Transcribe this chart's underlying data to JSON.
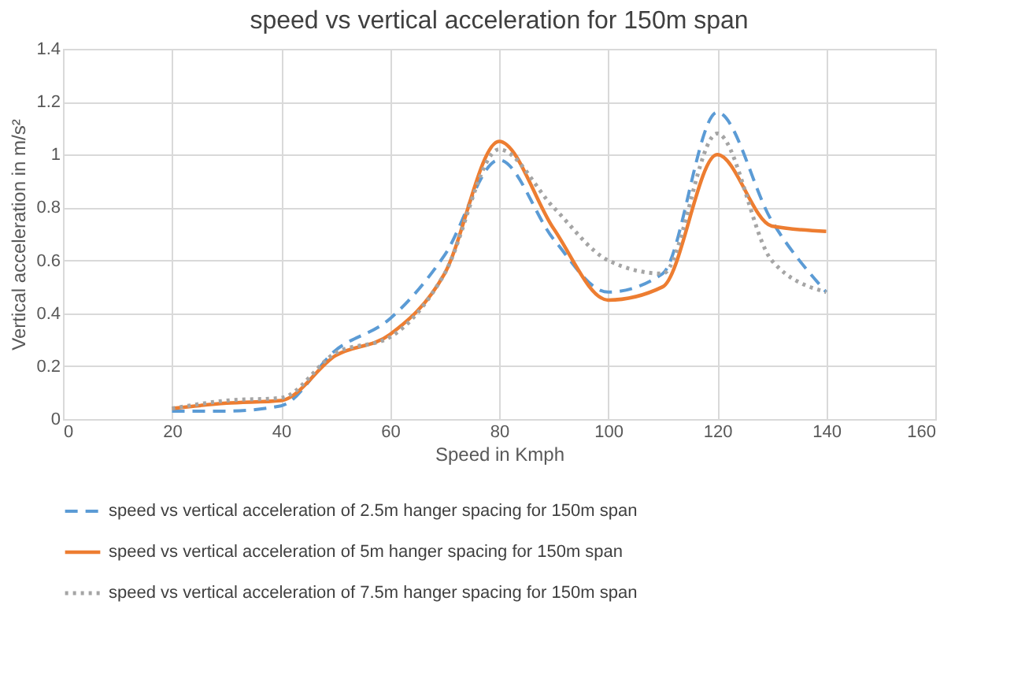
{
  "chart_data": {
    "type": "line",
    "title": "speed vs vertical acceleration for 150m span",
    "xlabel": "Speed in Kmph",
    "ylabel": "Vertical acceleration in m/s²",
    "x": [
      20,
      30,
      40,
      50,
      60,
      70,
      80,
      90,
      100,
      110,
      120,
      130,
      140
    ],
    "series": [
      {
        "name": "speed vs vertical acceleration of 2.5m hanger spacing for 150m span",
        "color": "#5b9bd5",
        "line_style": "dashed",
        "values": [
          0.03,
          0.03,
          0.05,
          0.26,
          0.38,
          0.62,
          0.98,
          0.68,
          0.48,
          0.55,
          1.16,
          0.75,
          0.48
        ]
      },
      {
        "name": "speed vs vertical acceleration of 5m hanger spacing for 150m span",
        "color": "#ed7d31",
        "line_style": "solid",
        "values": [
          0.04,
          0.06,
          0.07,
          0.24,
          0.32,
          0.55,
          1.05,
          0.72,
          0.45,
          0.5,
          1.0,
          0.73,
          0.71
        ]
      },
      {
        "name": "speed vs vertical acceleration of 7.5m hanger spacing for 150m span",
        "color": "#a5a5a5",
        "line_style": "dotted",
        "values": [
          0.04,
          0.07,
          0.08,
          0.25,
          0.31,
          0.55,
          1.02,
          0.8,
          0.6,
          0.55,
          1.08,
          0.6,
          0.48
        ]
      }
    ],
    "xlim": [
      0,
      160
    ],
    "xticks": [
      0,
      20,
      40,
      60,
      80,
      100,
      120,
      140,
      160
    ],
    "ylim": [
      0,
      1.4
    ],
    "yticks": [
      0,
      0.2,
      0.4,
      0.6,
      0.8,
      1,
      1.2,
      1.4
    ],
    "grid": true,
    "legend": "bottom",
    "marker": "none"
  }
}
